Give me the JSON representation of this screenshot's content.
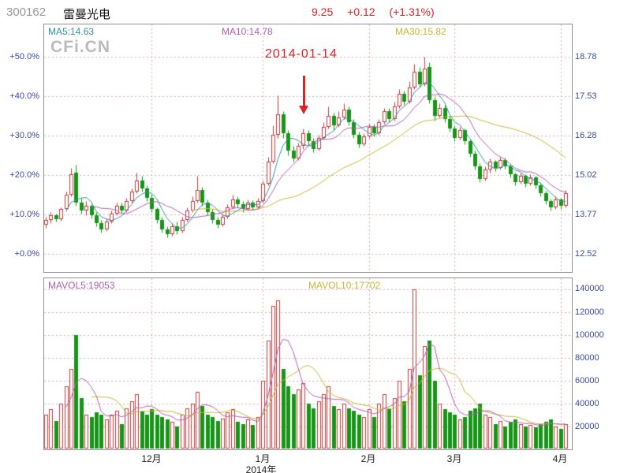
{
  "header": {
    "stock_code": "300162",
    "stock_name": "雷曼光电",
    "quote_price": "9.25",
    "quote_change": "+0.12",
    "quote_change_pct": "(+1.31%)"
  },
  "watermark": "CFi.CN",
  "chart_data": {
    "type": "candlestick",
    "title": "300162 雷曼光电 daily candlestick with volume",
    "base_price": 12.52,
    "price_axis_left_pct": [
      "+50.0%",
      "+40.0%",
      "+30.0%",
      "+20.0%",
      "+10.0%",
      "+0.0%"
    ],
    "price_axis_right_values": [
      "18.78",
      "17.53",
      "16.28",
      "15.02",
      "13.77",
      "12.52"
    ],
    "volume_axis_values": [
      "140000",
      "120000",
      "100000",
      "80000",
      "60000",
      "40000",
      "20000"
    ],
    "ma_labels": {
      "ma5": "MA5:14.63",
      "ma10": "MA10:14.78",
      "ma30": "MA30:15.82"
    },
    "mavol_labels": {
      "mavol5": "MAVOL5:19053",
      "mavol10": "MAVOL10:17702"
    },
    "annotation": {
      "text": "2014-01-14",
      "candle_index": 51
    },
    "year_label": "2014年",
    "months": [
      {
        "label": "12月",
        "index": 21
      },
      {
        "label": "1月",
        "index": 43
      },
      {
        "label": "2月",
        "index": 64
      },
      {
        "label": "3月",
        "index": 81
      },
      {
        "label": "4月",
        "index": 102
      }
    ],
    "colors": {
      "up": "#c43c3c",
      "down": "#169616",
      "ma5": "#3391a6",
      "ma10": "#b05fb0",
      "ma30": "#c8b832",
      "mavol5": "#b05fb0",
      "mavol10": "#c8b832",
      "grid": "#e0acac",
      "axis_text": "#3b4aa0",
      "annotation": "#dd2222",
      "quote": "#dd2222"
    },
    "candles_format": [
      "open",
      "high",
      "low",
      "close",
      "volume"
    ],
    "candles": [
      [
        13.45,
        13.7,
        13.35,
        13.6,
        30000
      ],
      [
        13.6,
        13.85,
        13.5,
        13.75,
        35000
      ],
      [
        13.75,
        13.8,
        13.55,
        13.62,
        25000
      ],
      [
        13.62,
        14.0,
        13.58,
        13.95,
        40000
      ],
      [
        13.95,
        14.5,
        13.9,
        14.4,
        55000
      ],
      [
        14.4,
        15.25,
        14.35,
        15.05,
        70000
      ],
      [
        15.1,
        15.35,
        14.05,
        14.15,
        100000
      ],
      [
        14.15,
        14.3,
        13.8,
        13.9,
        45000
      ],
      [
        13.9,
        14.2,
        13.75,
        14.05,
        30000
      ],
      [
        14.05,
        14.1,
        13.65,
        13.75,
        28000
      ],
      [
        13.75,
        13.85,
        13.4,
        13.5,
        32000
      ],
      [
        13.5,
        13.6,
        13.2,
        13.3,
        30000
      ],
      [
        13.3,
        13.65,
        13.25,
        13.55,
        26000
      ],
      [
        13.55,
        13.9,
        13.5,
        13.8,
        30000
      ],
      [
        13.8,
        14.15,
        13.75,
        14.05,
        34000
      ],
      [
        14.05,
        14.15,
        13.82,
        13.9,
        22000
      ],
      [
        13.9,
        14.3,
        13.85,
        14.2,
        36000
      ],
      [
        14.2,
        14.6,
        14.15,
        14.5,
        42000
      ],
      [
        14.5,
        15.1,
        14.45,
        14.85,
        48000
      ],
      [
        14.85,
        15.0,
        14.5,
        14.6,
        33000
      ],
      [
        14.6,
        14.7,
        14.2,
        14.3,
        30000
      ],
      [
        14.3,
        14.4,
        13.85,
        13.95,
        35000
      ],
      [
        13.95,
        14.0,
        13.5,
        13.6,
        30000
      ],
      [
        13.6,
        13.7,
        13.2,
        13.3,
        28000
      ],
      [
        13.3,
        13.4,
        13.05,
        13.15,
        26000
      ],
      [
        13.15,
        13.5,
        13.1,
        13.4,
        24000
      ],
      [
        13.4,
        13.55,
        13.15,
        13.25,
        20000
      ],
      [
        13.25,
        13.7,
        13.2,
        13.6,
        30000
      ],
      [
        13.6,
        14.0,
        13.55,
        13.9,
        36000
      ],
      [
        13.9,
        14.35,
        13.85,
        14.2,
        40000
      ],
      [
        14.2,
        15.0,
        14.15,
        14.55,
        50000
      ],
      [
        14.55,
        14.65,
        14.05,
        14.15,
        38000
      ],
      [
        14.15,
        14.25,
        13.75,
        13.85,
        30000
      ],
      [
        13.85,
        13.95,
        13.5,
        13.6,
        28000
      ],
      [
        13.6,
        13.7,
        13.35,
        13.45,
        25000
      ],
      [
        13.45,
        13.8,
        13.4,
        13.7,
        27000
      ],
      [
        13.7,
        14.1,
        13.65,
        14.0,
        32000
      ],
      [
        14.0,
        14.4,
        13.95,
        14.25,
        35000
      ],
      [
        14.25,
        14.35,
        14.0,
        14.1,
        24000
      ],
      [
        14.1,
        14.2,
        13.85,
        13.95,
        22000
      ],
      [
        13.95,
        14.25,
        13.9,
        14.15,
        26000
      ],
      [
        14.15,
        14.22,
        13.92,
        14.0,
        21000
      ],
      [
        14.0,
        14.3,
        13.95,
        14.2,
        28000
      ],
      [
        14.2,
        14.85,
        14.15,
        14.75,
        60000
      ],
      [
        14.75,
        15.6,
        14.7,
        15.45,
        95000
      ],
      [
        15.45,
        16.6,
        15.4,
        16.3,
        125000
      ],
      [
        16.3,
        17.55,
        16.2,
        16.95,
        130000
      ],
      [
        16.95,
        17.05,
        16.2,
        16.35,
        70000
      ],
      [
        16.35,
        16.45,
        15.65,
        15.8,
        55000
      ],
      [
        15.8,
        15.95,
        15.45,
        15.55,
        48000
      ],
      [
        15.55,
        16.05,
        15.5,
        15.95,
        52000
      ],
      [
        15.95,
        16.5,
        15.85,
        16.35,
        58000
      ],
      [
        16.35,
        16.45,
        15.95,
        16.1,
        40000
      ],
      [
        16.1,
        16.2,
        15.75,
        15.85,
        36000
      ],
      [
        15.85,
        16.3,
        15.8,
        16.2,
        42000
      ],
      [
        16.2,
        16.7,
        16.15,
        16.55,
        48000
      ],
      [
        16.55,
        17.2,
        16.5,
        16.9,
        55000
      ],
      [
        16.9,
        17.0,
        16.45,
        16.6,
        38000
      ],
      [
        16.6,
        17.05,
        16.55,
        16.85,
        35000
      ],
      [
        16.85,
        17.3,
        16.8,
        17.1,
        40000
      ],
      [
        17.1,
        17.2,
        16.6,
        16.7,
        36000
      ],
      [
        16.7,
        16.8,
        16.2,
        16.3,
        34000
      ],
      [
        16.3,
        16.4,
        15.9,
        16.0,
        30000
      ],
      [
        16.0,
        16.35,
        15.95,
        16.25,
        28000
      ],
      [
        16.25,
        16.65,
        16.2,
        16.55,
        35000
      ],
      [
        16.55,
        16.65,
        16.25,
        16.35,
        28000
      ],
      [
        16.35,
        16.8,
        16.3,
        16.7,
        40000
      ],
      [
        16.7,
        17.15,
        16.65,
        17.05,
        48000
      ],
      [
        17.05,
        17.15,
        16.7,
        16.8,
        35000
      ],
      [
        16.8,
        17.35,
        16.75,
        17.2,
        45000
      ],
      [
        17.2,
        17.75,
        17.15,
        17.6,
        60000
      ],
      [
        17.6,
        17.7,
        17.25,
        17.35,
        42000
      ],
      [
        17.35,
        18.0,
        17.3,
        17.8,
        70000
      ],
      [
        17.8,
        18.55,
        17.75,
        18.3,
        140000
      ],
      [
        18.3,
        18.45,
        17.8,
        17.9,
        65000
      ],
      [
        17.9,
        18.78,
        17.85,
        18.4,
        90000
      ],
      [
        18.45,
        18.6,
        17.3,
        17.4,
        95000
      ],
      [
        17.4,
        17.5,
        16.75,
        16.9,
        60000
      ],
      [
        16.9,
        17.3,
        16.85,
        17.15,
        40000
      ],
      [
        17.15,
        17.25,
        16.7,
        16.8,
        35000
      ],
      [
        16.8,
        16.9,
        16.4,
        16.5,
        32000
      ],
      [
        16.5,
        16.6,
        16.1,
        16.2,
        30000
      ],
      [
        16.2,
        16.55,
        16.15,
        16.45,
        26000
      ],
      [
        16.45,
        16.5,
        16.0,
        16.1,
        28000
      ],
      [
        16.1,
        16.15,
        15.6,
        15.7,
        34000
      ],
      [
        15.7,
        15.8,
        15.2,
        15.3,
        36000
      ],
      [
        15.3,
        15.4,
        14.8,
        14.9,
        40000
      ],
      [
        14.9,
        15.3,
        14.85,
        15.2,
        30000
      ],
      [
        15.2,
        15.55,
        15.1,
        15.45,
        28000
      ],
      [
        15.45,
        15.5,
        15.15,
        15.25,
        22000
      ],
      [
        15.25,
        15.6,
        15.2,
        15.5,
        25000
      ],
      [
        15.5,
        15.58,
        15.22,
        15.3,
        20000
      ],
      [
        15.3,
        15.38,
        14.95,
        15.05,
        24000
      ],
      [
        15.05,
        15.1,
        14.7,
        14.8,
        26000
      ],
      [
        14.8,
        15.1,
        14.75,
        15.0,
        22000
      ],
      [
        15.0,
        15.05,
        14.65,
        14.75,
        20000
      ],
      [
        14.75,
        15.05,
        14.7,
        14.95,
        21000
      ],
      [
        14.95,
        15.0,
        14.6,
        14.7,
        19000
      ],
      [
        14.7,
        14.78,
        14.35,
        14.45,
        22000
      ],
      [
        14.45,
        14.52,
        14.1,
        14.2,
        24000
      ],
      [
        14.2,
        14.28,
        13.9,
        14.0,
        26000
      ],
      [
        14.0,
        14.35,
        13.95,
        14.25,
        20000
      ],
      [
        14.25,
        14.3,
        13.95,
        14.05,
        18000
      ],
      [
        14.05,
        14.55,
        14.0,
        14.45,
        22000
      ]
    ]
  }
}
